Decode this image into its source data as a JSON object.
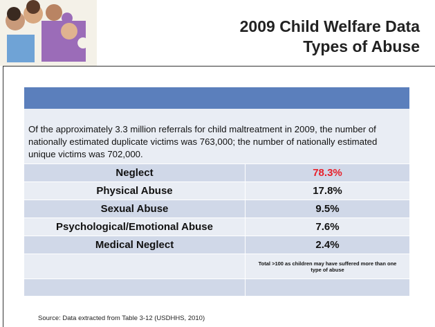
{
  "header": {
    "title_line1": "2009 Child Welfare Data",
    "title_line2": "Types of Abuse"
  },
  "table": {
    "intro": "Of the approximately 3.3 million referrals for child maltreatment in 2009, the number of nationally estimated duplicate victims was 763,000; the number of nationally estimated unique victims was 702,000.",
    "rows": [
      [
        "Neglect",
        "78.3%"
      ],
      [
        "Physical Abuse",
        "17.8%"
      ],
      [
        "Sexual Abuse",
        "9.5%"
      ],
      [
        "Psychological/Emotional Abuse",
        "7.6%"
      ],
      [
        "Medical Neglect",
        "2.4%"
      ]
    ],
    "note": "Total >100 as children may have suffered more than one type of abuse"
  },
  "source": "Source: Data extracted from Table 3-12 (USDHHS, 2010)"
}
